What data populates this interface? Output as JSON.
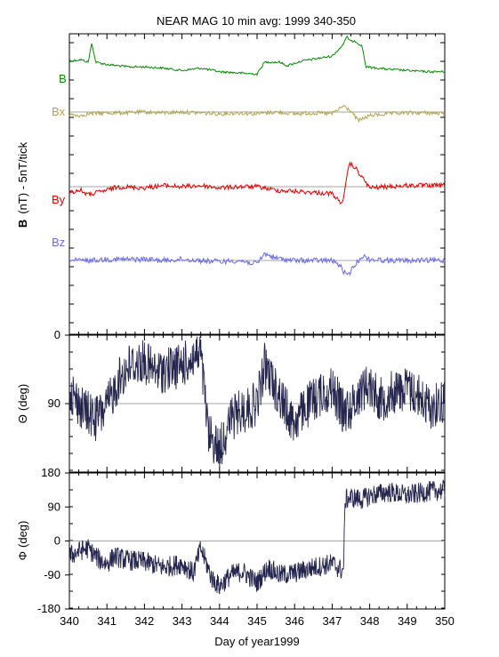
{
  "chart_data": [
    {
      "type": "line",
      "title": "NEAR MAG 10 min avg: 1999 340-350",
      "ylabel_symbol": "B",
      "ylabel": "(nT) - 5nT/tick",
      "xlim": [
        340,
        350
      ],
      "series": [
        {
          "name": "B",
          "color": "#008c00",
          "x": [
            340.0,
            340.3,
            340.5,
            340.6,
            340.7,
            341.0,
            341.3,
            341.6,
            342.0,
            342.5,
            343.0,
            343.5,
            344.0,
            344.5,
            345.0,
            345.2,
            345.6,
            345.8,
            346.2,
            346.6,
            347.0,
            347.25,
            347.4,
            347.5,
            347.6,
            347.8,
            347.9,
            348.5,
            349.0,
            349.5,
            350.0
          ],
          "y": [
            21.0,
            21.5,
            20.5,
            28.5,
            20.5,
            19.5,
            19.0,
            18.5,
            18.5,
            18.0,
            17.0,
            18.0,
            16.5,
            16.0,
            15.5,
            20.5,
            20.5,
            19.0,
            21.0,
            22.0,
            23.0,
            27.0,
            31.0,
            29.0,
            29.5,
            27.0,
            18.5,
            17.5,
            17.0,
            16.5,
            16.5
          ]
        },
        {
          "name": "Bx",
          "color": "#b0a64a",
          "x": [
            340.0,
            340.3,
            340.5,
            341.0,
            341.5,
            342.0,
            342.5,
            343.0,
            343.5,
            344.0,
            344.5,
            345.0,
            345.5,
            346.0,
            346.5,
            347.0,
            347.3,
            347.5,
            347.7,
            348.0,
            348.5,
            349.0,
            349.5,
            350.0
          ],
          "y": [
            -1.5,
            -2.0,
            -1.0,
            -0.5,
            -0.5,
            0.0,
            -0.5,
            0.0,
            -0.5,
            -1.0,
            -0.5,
            -1.0,
            0.0,
            -1.0,
            -0.5,
            -1.0,
            3.5,
            0.5,
            -5.0,
            -2.0,
            -1.0,
            -0.5,
            -0.5,
            -1.0
          ]
        },
        {
          "name": "By",
          "color": "#e00000",
          "x": [
            340.0,
            340.3,
            340.5,
            341.0,
            341.3,
            342.0,
            342.5,
            343.0,
            343.5,
            344.0,
            344.5,
            345.0,
            345.5,
            346.0,
            346.5,
            347.0,
            347.2,
            347.3,
            347.45,
            347.6,
            347.8,
            348.0,
            348.5,
            349.0,
            349.5,
            350.0
          ],
          "y": [
            -2.5,
            -1.5,
            -3.5,
            -1.5,
            0.0,
            -0.5,
            0.5,
            0.0,
            0.5,
            -0.5,
            0.0,
            0.0,
            -1.5,
            -2.0,
            -2.5,
            -3.0,
            -6.5,
            -6.0,
            10.0,
            8.5,
            4.0,
            -0.5,
            0.0,
            0.5,
            0.5,
            0.5
          ]
        },
        {
          "name": "Bz",
          "color": "#6a6ae8",
          "x": [
            340.0,
            340.5,
            341.0,
            341.5,
            342.0,
            342.5,
            343.0,
            343.5,
            344.0,
            344.5,
            345.0,
            345.2,
            345.5,
            346.0,
            346.5,
            347.0,
            347.2,
            347.4,
            347.6,
            347.8,
            348.0,
            348.5,
            349.0,
            349.5,
            350.0
          ],
          "y": [
            0.0,
            0.0,
            0.5,
            0.5,
            0.5,
            0.0,
            0.5,
            0.0,
            -0.5,
            0.0,
            -1.5,
            3.0,
            1.0,
            0.0,
            0.0,
            0.0,
            -2.0,
            -7.0,
            -2.0,
            2.0,
            0.5,
            0.0,
            0.0,
            0.0,
            0.0
          ]
        }
      ]
    },
    {
      "type": "line",
      "ylabel_symbol": "Θ",
      "ylabel": "(deg)",
      "ylim": [
        0,
        180
      ],
      "yticks": [
        0,
        90
      ],
      "series": [
        {
          "name": "",
          "color": "#25254e",
          "x": [
            340.0,
            340.3,
            340.7,
            341.0,
            341.3,
            341.6,
            342.0,
            342.3,
            342.6,
            343.0,
            343.3,
            343.5,
            343.7,
            344.0,
            344.3,
            344.6,
            345.0,
            345.2,
            345.5,
            345.8,
            346.0,
            346.3,
            346.6,
            347.0,
            347.3,
            347.5,
            347.8,
            348.0,
            348.3,
            348.6,
            349.0,
            349.3,
            349.6,
            350.0
          ],
          "y": [
            70,
            95,
            110,
            95,
            60,
            40,
            35,
            50,
            45,
            40,
            30,
            25,
            130,
            150,
            110,
            100,
            90,
            40,
            70,
            100,
            115,
            95,
            80,
            70,
            100,
            95,
            70,
            65,
            85,
            75,
            70,
            80,
            95,
            85
          ]
        }
      ]
    },
    {
      "type": "line",
      "ylabel_symbol": "Φ",
      "ylabel": "(deg)",
      "ylim": [
        -180,
        180
      ],
      "yticks": [
        180,
        90,
        0,
        -90,
        -180
      ],
      "xlabel": "Day of year1999",
      "xticks": [
        340,
        341,
        342,
        343,
        344,
        345,
        346,
        347,
        348,
        349,
        350
      ],
      "series": [
        {
          "name": "",
          "color": "#25254e",
          "x": [
            340.0,
            340.3,
            340.5,
            340.8,
            341.0,
            341.2,
            341.5,
            342.0,
            342.5,
            343.0,
            343.3,
            343.5,
            343.8,
            344.0,
            344.3,
            344.6,
            345.0,
            345.3,
            345.6,
            346.0,
            346.5,
            347.0,
            347.3,
            347.35,
            347.5,
            347.8,
            348.0,
            348.5,
            349.0,
            349.5,
            350.0
          ],
          "y": [
            -40,
            -25,
            -20,
            -50,
            -60,
            -40,
            -50,
            -55,
            -70,
            -60,
            -85,
            -20,
            -100,
            -120,
            -90,
            -80,
            -110,
            -70,
            -90,
            -85,
            -70,
            -60,
            -80,
            110,
            115,
            110,
            120,
            130,
            120,
            130,
            135
          ]
        }
      ]
    }
  ]
}
